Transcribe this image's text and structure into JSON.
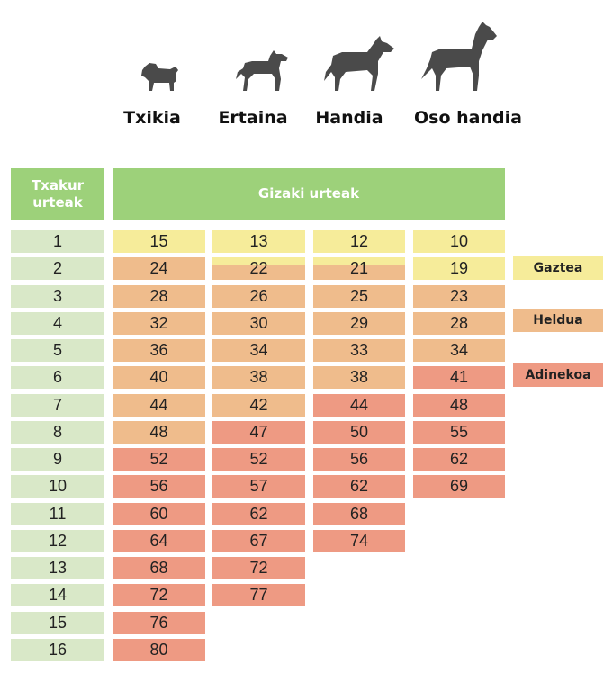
{
  "dog_sizes": [
    "Txikia",
    "Ertaina",
    "Handia",
    "Oso handia"
  ],
  "header": {
    "dog_years_label": "Txakur\nurteak",
    "human_years_label": "Gizaki urteak"
  },
  "dog_years": [
    "1",
    "2",
    "3",
    "4",
    "5",
    "6",
    "7",
    "8",
    "9",
    "10",
    "11",
    "12",
    "13",
    "14",
    "15",
    "16"
  ],
  "human_years": {
    "Txikia": [
      "15",
      "24",
      "28",
      "32",
      "36",
      "40",
      "44",
      "48",
      "52",
      "56",
      "60",
      "64",
      "68",
      "72",
      "76",
      "80"
    ],
    "Ertaina": [
      "13",
      "22",
      "26",
      "30",
      "34",
      "38",
      "42",
      "47",
      "52",
      "57",
      "62",
      "67",
      "72",
      "77"
    ],
    "Handia": [
      "12",
      "21",
      "25",
      "29",
      "33",
      "38",
      "44",
      "50",
      "56",
      "62",
      "68",
      "74"
    ],
    "Oso handia": [
      "10",
      "19",
      "23",
      "28",
      "34",
      "41",
      "48",
      "55",
      "62",
      "69"
    ]
  },
  "stage_index": {
    "Txikia": [
      "y",
      "h",
      "h",
      "h",
      "h",
      "h",
      "h",
      "h",
      "a",
      "a",
      "a",
      "a",
      "a",
      "a",
      "a",
      "a"
    ],
    "Ertaina": [
      "y",
      "yh",
      "h",
      "h",
      "h",
      "h",
      "h",
      "a",
      "a",
      "a",
      "a",
      "a",
      "a",
      "a"
    ],
    "Handia": [
      "y",
      "yh",
      "h",
      "h",
      "h",
      "h",
      "a",
      "a",
      "a",
      "a",
      "a",
      "a"
    ],
    "Oso handia": [
      "y",
      "y",
      "h",
      "h",
      "h",
      "a",
      "a",
      "a",
      "a",
      "a"
    ]
  },
  "legend": [
    {
      "key": "y",
      "label": "Gaztea"
    },
    {
      "key": "h",
      "label": "Heldua"
    },
    {
      "key": "a",
      "label": "Adinekoa"
    }
  ],
  "colors": {
    "y": "#f6ec9a",
    "h": "#efbc8c",
    "a": "#ee9a83",
    "header": "#9dd17a",
    "dog_year_cell": "#d9e8c8",
    "dog_silhouette": "#4a4a4a"
  },
  "icons": [
    "pug-icon",
    "medium-dog-icon",
    "large-dog-icon",
    "great-dane-icon"
  ]
}
